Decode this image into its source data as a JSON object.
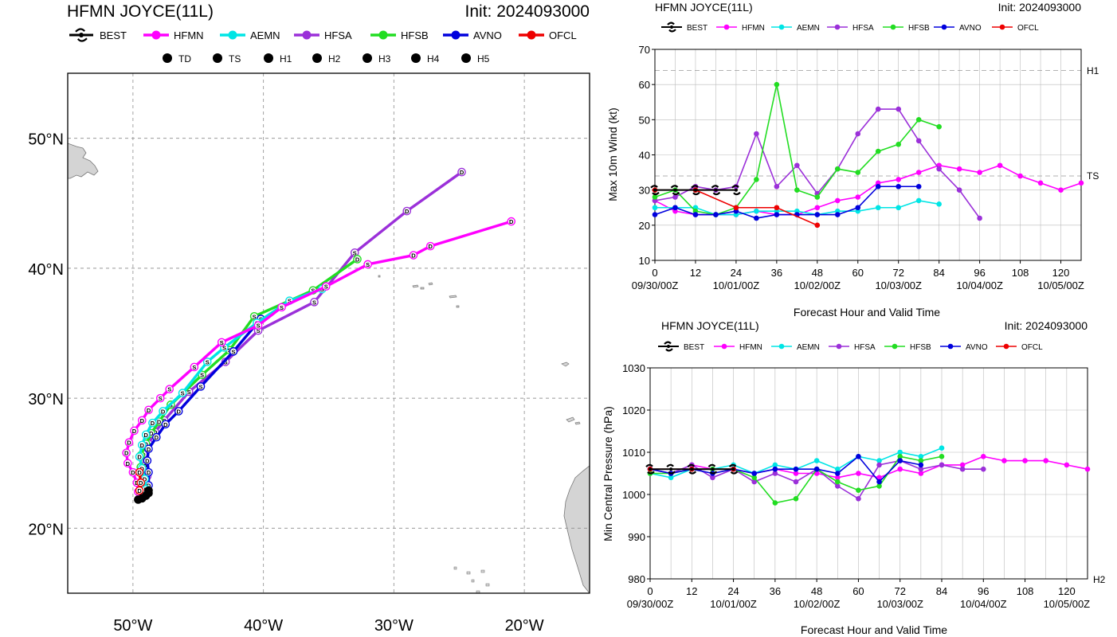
{
  "colors": {
    "BEST": "#000000",
    "HFMN": "#ff00ff",
    "AEMN": "#00e5e5",
    "HFSA": "#9b30d9",
    "HFSB": "#22dd22",
    "AVNO": "#0000dd",
    "OFCL": "#ee0000"
  },
  "map": {
    "title": "HFMN JOYCE(11L)",
    "init": "Init: 2024093000",
    "legend_models": [
      "BEST",
      "HFMN",
      "AEMN",
      "HFSA",
      "HFSB",
      "AVNO",
      "OFCL"
    ],
    "intensity_legend": [
      {
        "sym": "D",
        "label": "TD"
      },
      {
        "sym": "S",
        "label": "TS"
      },
      {
        "sym": "1",
        "label": "H1"
      },
      {
        "sym": "2",
        "label": "H2"
      },
      {
        "sym": "3",
        "label": "H3"
      },
      {
        "sym": "4",
        "label": "H4"
      },
      {
        "sym": "5",
        "label": "H5"
      }
    ],
    "lat_ticks": [
      "20°N",
      "30°N",
      "40°N",
      "50°N"
    ],
    "lon_ticks": [
      "50°W",
      "40°W",
      "30°W",
      "20°W"
    ]
  },
  "wind": {
    "title": "HFMN JOYCE(11L)",
    "init": "Init: 2024093000",
    "ylabel": "Max 10m Wind (kt)",
    "xlabel": "Forecast Hour and Valid Time",
    "ref_labels": [
      "H1",
      "TS"
    ],
    "legend_models": [
      "BEST",
      "HFMN",
      "AEMN",
      "HFSA",
      "HFSB",
      "AVNO",
      "OFCL"
    ]
  },
  "pressure": {
    "title": "HFMN JOYCE(11L)",
    "init": "Init: 2024093000",
    "ylabel": "Min Central Pressure (hPa)",
    "xlabel": "Forecast Hour and Valid Time",
    "ref_labels": [
      "H2"
    ],
    "legend_models": [
      "BEST",
      "HFMN",
      "AEMN",
      "HFSA",
      "HFSB",
      "AVNO",
      "OFCL"
    ]
  },
  "chart_data": [
    {
      "type": "line",
      "title": "HFMN JOYCE(11L)",
      "subtitle": "Init: 2024093000",
      "xlim": [
        -55,
        -15
      ],
      "ylim": [
        15,
        55
      ],
      "x_ticks": [
        -50,
        -40,
        -30,
        -20
      ],
      "y_ticks": [
        20,
        30,
        40,
        50
      ],
      "grid": true,
      "series": [
        {
          "name": "BEST",
          "points": [
            [
              -49.6,
              22.2
            ],
            [
              -49.3,
              22.3
            ],
            [
              -49.0,
              22.5
            ],
            [
              -48.8,
              22.7
            ],
            [
              -48.8,
              22.9
            ]
          ],
          "syms": [
            "D",
            "D",
            "D",
            "D",
            "D"
          ]
        },
        {
          "name": "HFMN",
          "points": [
            [
              -49.6,
              22.8
            ],
            [
              -49.7,
              23.5
            ],
            [
              -50.0,
              24.3
            ],
            [
              -50.4,
              25.0
            ],
            [
              -50.5,
              25.8
            ],
            [
              -50.3,
              26.6
            ],
            [
              -49.9,
              27.5
            ],
            [
              -49.3,
              28.3
            ],
            [
              -48.8,
              29.1
            ],
            [
              -47.9,
              30.0
            ],
            [
              -47.2,
              30.7
            ],
            [
              -45.3,
              32.4
            ],
            [
              -43.2,
              34.3
            ],
            [
              -40.4,
              35.6
            ],
            [
              -38.6,
              37.0
            ],
            [
              -35.2,
              38.6
            ],
            [
              -32.0,
              40.3
            ],
            [
              -28.5,
              41.0
            ],
            [
              -27.2,
              41.7
            ],
            [
              -21.0,
              43.6
            ]
          ],
          "syms": [
            "D",
            "D",
            "D",
            "D",
            "D",
            "D",
            "D",
            "D",
            "D",
            "S",
            "S",
            "S",
            "S",
            "S",
            "S",
            "S",
            "S",
            "D",
            "D",
            "D"
          ]
        },
        {
          "name": "AEMN",
          "points": [
            [
              -49.1,
              22.5
            ],
            [
              -49.0,
              23.0
            ],
            [
              -49.1,
              23.8
            ],
            [
              -49.3,
              24.6
            ],
            [
              -49.5,
              25.5
            ],
            [
              -49.3,
              26.4
            ],
            [
              -49.0,
              27.2
            ],
            [
              -48.5,
              28.1
            ],
            [
              -47.7,
              29.0
            ],
            [
              -46.2,
              30.4
            ],
            [
              -44.3,
              32.8
            ],
            [
              -43.0,
              33.9
            ],
            [
              -40.5,
              35.8
            ],
            [
              -38.0,
              37.5
            ],
            [
              -35.5,
              38.4
            ]
          ],
          "syms": [
            "D",
            "D",
            "D",
            "D",
            "D",
            "D",
            "D",
            "D",
            "D",
            "S",
            "S",
            "S",
            "S",
            "S",
            "S"
          ]
        },
        {
          "name": "HFSA",
          "points": [
            [
              -49.1,
              22.6
            ],
            [
              -49.0,
              23.2
            ],
            [
              -48.9,
              24.0
            ],
            [
              -49.1,
              24.8
            ],
            [
              -49.2,
              25.7
            ],
            [
              -48.8,
              26.5
            ],
            [
              -48.3,
              27.4
            ],
            [
              -47.6,
              28.3
            ],
            [
              -45.7,
              30.5
            ],
            [
              -42.9,
              32.8
            ],
            [
              -40.4,
              35.2
            ],
            [
              -36.1,
              37.4
            ],
            [
              -33.0,
              41.2
            ],
            [
              -29.0,
              44.4
            ],
            [
              -24.8,
              47.4
            ]
          ],
          "syms": [
            "D",
            "D",
            "D",
            "D",
            "D",
            "D",
            "D",
            "S",
            "S",
            "S",
            "S",
            "S",
            "S",
            "D",
            "D"
          ]
        },
        {
          "name": "HFSB",
          "points": [
            [
              -49.2,
              22.6
            ],
            [
              -49.1,
              23.1
            ],
            [
              -49.2,
              23.9
            ],
            [
              -49.4,
              24.7
            ],
            [
              -49.4,
              25.6
            ],
            [
              -49.0,
              26.5
            ],
            [
              -48.6,
              27.3
            ],
            [
              -48.0,
              28.2
            ],
            [
              -47.1,
              29.5
            ],
            [
              -44.7,
              31.8
            ],
            [
              -42.6,
              33.7
            ],
            [
              -40.7,
              36.3
            ],
            [
              -36.2,
              38.3
            ],
            [
              -32.8,
              40.7
            ]
          ],
          "syms": [
            "D",
            "D",
            "D",
            "D",
            "D",
            "D",
            "D",
            "D",
            "S",
            "S",
            "S",
            "S",
            "S",
            "D"
          ]
        },
        {
          "name": "AVNO",
          "points": [
            [
              -49.0,
              22.6
            ],
            [
              -48.8,
              23.3
            ],
            [
              -48.8,
              24.3
            ],
            [
              -48.9,
              25.2
            ],
            [
              -48.8,
              26.1
            ],
            [
              -48.2,
              27.0
            ],
            [
              -47.5,
              28.0
            ],
            [
              -46.5,
              29.0
            ],
            [
              -44.8,
              30.9
            ],
            [
              -42.3,
              33.6
            ],
            [
              -40.2,
              36.1
            ]
          ],
          "syms": [
            "D",
            "D",
            "D",
            "D",
            "D",
            "D",
            "D",
            "D",
            "S",
            "S",
            "S"
          ]
        },
        {
          "name": "OFCL",
          "points": [
            [
              -49.5,
              22.9
            ],
            [
              -49.4,
              23.5
            ],
            [
              -49.5,
              24.3
            ]
          ],
          "syms": [
            "D",
            "D",
            "D"
          ]
        }
      ]
    },
    {
      "type": "line",
      "title": "HFMN JOYCE(11L)",
      "subtitle": "Init: 2024093000",
      "xlabel": "Forecast Hour and Valid Time",
      "ylabel": "Max 10m Wind (kt)",
      "xlim": [
        0,
        126
      ],
      "ylim": [
        10,
        70
      ],
      "x_ticks": [
        0,
        12,
        24,
        36,
        48,
        60,
        72,
        84,
        96,
        108,
        120
      ],
      "y_ticks": [
        10,
        20,
        30,
        40,
        50,
        60,
        70
      ],
      "valid_times": [
        "09/30/00Z",
        "10/01/00Z",
        "10/02/00Z",
        "10/03/00Z",
        "10/04/00Z",
        "10/05/00Z"
      ],
      "reference_lines": [
        {
          "label": "H1",
          "value": 64
        },
        {
          "label": "TS",
          "value": 34
        }
      ],
      "grid": true,
      "series": [
        {
          "name": "BEST",
          "x": [
            0,
            6,
            12,
            18,
            24
          ],
          "values": [
            30,
            30,
            30,
            30,
            30
          ]
        },
        {
          "name": "HFMN",
          "x": [
            0,
            6,
            12,
            18,
            24,
            30,
            36,
            42,
            48,
            54,
            60,
            66,
            72,
            78,
            84,
            90,
            96,
            102,
            108,
            114,
            120,
            126
          ],
          "values": [
            27,
            24,
            23,
            23,
            23,
            24,
            23,
            23,
            25,
            27,
            28,
            32,
            33,
            35,
            37,
            36,
            35,
            37,
            34,
            32,
            30,
            32
          ]
        },
        {
          "name": "AEMN",
          "x": [
            0,
            6,
            12,
            18,
            24,
            30,
            36,
            42,
            48,
            54,
            60,
            66,
            72,
            78,
            84
          ],
          "values": [
            25,
            25,
            25,
            23,
            23,
            24,
            24,
            24,
            23,
            24,
            24,
            25,
            25,
            27,
            26
          ]
        },
        {
          "name": "HFSA",
          "x": [
            0,
            6,
            12,
            18,
            24,
            30,
            36,
            42,
            48,
            54,
            60,
            66,
            72,
            78,
            84,
            90,
            96
          ],
          "values": [
            27,
            28,
            31,
            30,
            31,
            46,
            31,
            37,
            29,
            36,
            46,
            53,
            53,
            44,
            36,
            30,
            22
          ]
        },
        {
          "name": "HFSB",
          "x": [
            0,
            6,
            12,
            18,
            24,
            30,
            36,
            42,
            48,
            54,
            60,
            66,
            72,
            78,
            84
          ],
          "values": [
            28,
            30,
            24,
            23,
            25,
            33,
            60,
            30,
            28,
            36,
            35,
            41,
            43,
            50,
            48
          ]
        },
        {
          "name": "AVNO",
          "x": [
            0,
            6,
            12,
            18,
            24,
            30,
            36,
            42,
            48,
            54,
            60,
            66,
            72,
            78
          ],
          "values": [
            23,
            25,
            23,
            23,
            24,
            22,
            23,
            23,
            23,
            23,
            25,
            31,
            31,
            31
          ]
        },
        {
          "name": "OFCL",
          "x": [
            0,
            12,
            24,
            36,
            48
          ],
          "values": [
            30,
            30,
            25,
            25,
            20
          ]
        }
      ]
    },
    {
      "type": "line",
      "title": "HFMN JOYCE(11L)",
      "subtitle": "Init: 2024093000",
      "xlabel": "Forecast Hour and Valid Time",
      "ylabel": "Min Central Pressure (hPa)",
      "xlim": [
        0,
        126
      ],
      "ylim": [
        980,
        1030
      ],
      "x_ticks": [
        0,
        12,
        24,
        36,
        48,
        60,
        72,
        84,
        96,
        108,
        120
      ],
      "y_ticks": [
        980,
        990,
        1000,
        1010,
        1020,
        1030
      ],
      "valid_times": [
        "09/30/00Z",
        "10/01/00Z",
        "10/02/00Z",
        "10/03/00Z",
        "10/04/00Z",
        "10/05/00Z"
      ],
      "reference_lines": [
        {
          "label": "H2",
          "value": 979
        }
      ],
      "grid": true,
      "series": [
        {
          "name": "BEST",
          "x": [
            0,
            6,
            12,
            18,
            24
          ],
          "values": [
            1006,
            1006,
            1006,
            1006,
            1006
          ]
        },
        {
          "name": "HFMN",
          "x": [
            0,
            6,
            12,
            18,
            24,
            30,
            36,
            42,
            48,
            54,
            60,
            66,
            72,
            78,
            84,
            90,
            96,
            102,
            108,
            114,
            120,
            126
          ],
          "values": [
            1006,
            1005,
            1007,
            1006,
            1006,
            1005,
            1006,
            1005,
            1005,
            1004,
            1005,
            1004,
            1006,
            1005,
            1007,
            1007,
            1009,
            1008,
            1008,
            1008,
            1007,
            1006
          ]
        },
        {
          "name": "AEMN",
          "x": [
            0,
            6,
            12,
            18,
            24,
            30,
            36,
            42,
            48,
            54,
            60,
            66,
            72,
            78,
            84
          ],
          "values": [
            1005,
            1004,
            1006,
            1006,
            1007,
            1005,
            1007,
            1006,
            1008,
            1006,
            1009,
            1008,
            1010,
            1009,
            1011
          ]
        },
        {
          "name": "HFSA",
          "x": [
            0,
            6,
            12,
            18,
            24,
            30,
            36,
            42,
            48,
            54,
            60,
            66,
            72,
            78,
            84,
            90,
            96
          ],
          "values": [
            1006,
            1005,
            1007,
            1004,
            1006,
            1003,
            1005,
            1003,
            1006,
            1002,
            999,
            1007,
            1008,
            1006,
            1007,
            1006,
            1006
          ]
        },
        {
          "name": "HFSB",
          "x": [
            0,
            6,
            12,
            18,
            24,
            30,
            36,
            42,
            48,
            54,
            60,
            66,
            72,
            78,
            84
          ],
          "values": [
            1005,
            1005,
            1006,
            1006,
            1006,
            1004,
            998,
            999,
            1006,
            1003,
            1001,
            1002,
            1009,
            1008,
            1009
          ]
        },
        {
          "name": "AVNO",
          "x": [
            0,
            6,
            12,
            18,
            24,
            30,
            36,
            42,
            48,
            54,
            60,
            66,
            72,
            78
          ],
          "values": [
            1006,
            1005,
            1006,
            1005,
            1006,
            1005,
            1006,
            1006,
            1006,
            1005,
            1009,
            1003,
            1008,
            1007
          ]
        },
        {
          "name": "OFCL",
          "x": [
            0,
            12,
            24
          ],
          "values": [
            1006,
            1006,
            1006
          ]
        }
      ]
    }
  ]
}
